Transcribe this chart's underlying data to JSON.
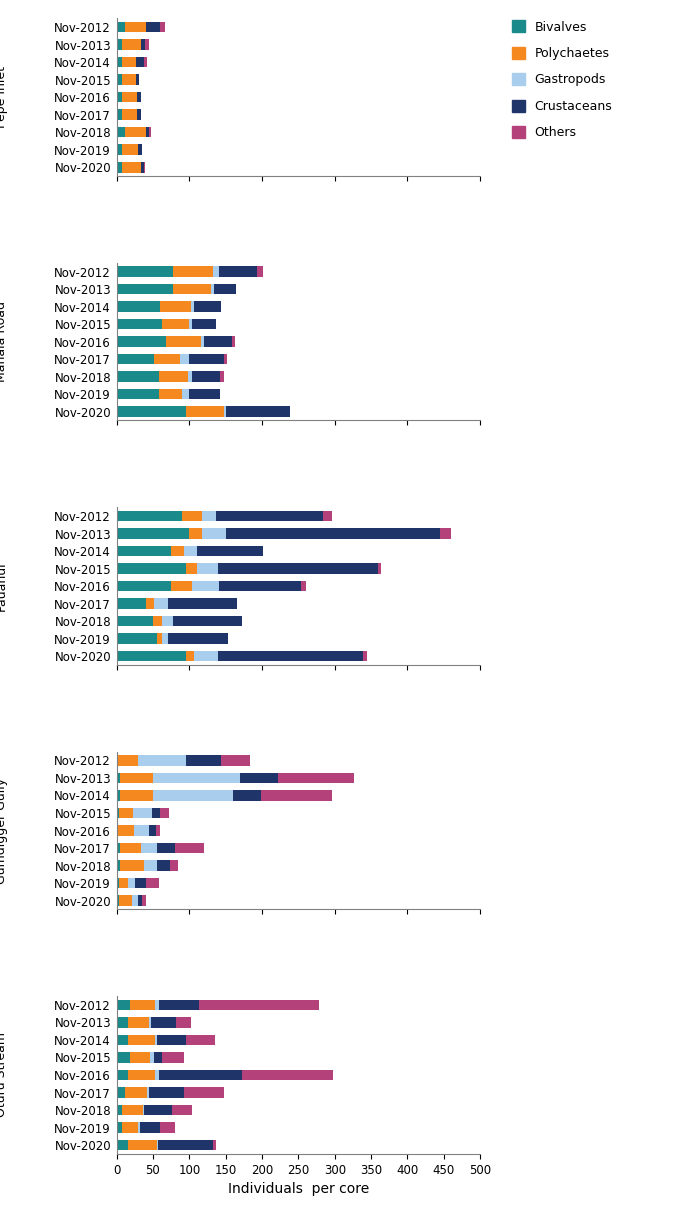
{
  "colors": {
    "Bivalves": "#1a8a8a",
    "Polychaetes": "#F5891F",
    "Gastropods": "#A8CDED",
    "Crustaceans": "#1F3468",
    "Others": "#B5417A"
  },
  "categories": [
    "Bivalves",
    "Polychaetes",
    "Gastropods",
    "Crustaceans",
    "Others"
  ],
  "sections": [
    {
      "label": "Pepe Inlet",
      "years": [
        "Nov-2012",
        "Nov-2013",
        "Nov-2014",
        "Nov-2015",
        "Nov-2016",
        "Nov-2017",
        "Nov-2018",
        "Nov-2019",
        "Nov-2020"
      ],
      "data": {
        "Bivalves": [
          12,
          8,
          8,
          8,
          8,
          8,
          12,
          8,
          8
        ],
        "Polychaetes": [
          28,
          25,
          18,
          18,
          20,
          20,
          28,
          22,
          25
        ],
        "Gastropods": [
          1,
          1,
          1,
          0,
          0,
          0,
          0,
          0,
          0
        ],
        "Crustaceans": [
          18,
          5,
          10,
          5,
          5,
          5,
          5,
          5,
          4
        ],
        "Others": [
          8,
          5,
          5,
          0,
          0,
          0,
          2,
          0,
          2
        ]
      }
    },
    {
      "label": "Manaia Road",
      "years": [
        "Nov-2012",
        "Nov-2013",
        "Nov-2014",
        "Nov-2015",
        "Nov-2016",
        "Nov-2017",
        "Nov-2018",
        "Nov-2019",
        "Nov-2020"
      ],
      "data": {
        "Bivalves": [
          78,
          78,
          60,
          62,
          68,
          52,
          58,
          58,
          95
        ],
        "Polychaetes": [
          55,
          52,
          42,
          38,
          48,
          35,
          40,
          32,
          52
        ],
        "Gastropods": [
          8,
          4,
          4,
          4,
          4,
          12,
          6,
          10,
          4
        ],
        "Crustaceans": [
          52,
          30,
          38,
          32,
          38,
          48,
          38,
          42,
          88
        ],
        "Others": [
          8,
          0,
          0,
          0,
          5,
          5,
          5,
          0,
          0
        ]
      }
    },
    {
      "label": "Pauanui",
      "years": [
        "Nov-2012",
        "Nov-2013",
        "Nov-2014",
        "Nov-2015",
        "Nov-2016",
        "Nov-2017",
        "Nov-2018",
        "Nov-2019",
        "Nov-2020"
      ],
      "data": {
        "Bivalves": [
          90,
          100,
          75,
          95,
          75,
          40,
          50,
          55,
          95
        ],
        "Polychaetes": [
          28,
          18,
          18,
          16,
          28,
          12,
          12,
          8,
          12
        ],
        "Gastropods": [
          18,
          32,
          18,
          28,
          38,
          18,
          15,
          8,
          32
        ],
        "Crustaceans": [
          148,
          295,
          90,
          220,
          112,
          95,
          95,
          82,
          200
        ],
        "Others": [
          12,
          15,
          0,
          5,
          8,
          0,
          0,
          0,
          5
        ]
      }
    },
    {
      "label": "Gumdigger Gully",
      "years": [
        "Nov-2012",
        "Nov-2013",
        "Nov-2014",
        "Nov-2015",
        "Nov-2016",
        "Nov-2017",
        "Nov-2018",
        "Nov-2019",
        "Nov-2020"
      ],
      "data": {
        "Bivalves": [
          2,
          5,
          5,
          3,
          2,
          5,
          5,
          3,
          3
        ],
        "Polychaetes": [
          28,
          45,
          45,
          20,
          22,
          28,
          32,
          12,
          18
        ],
        "Gastropods": [
          65,
          120,
          110,
          25,
          20,
          22,
          18,
          10,
          8
        ],
        "Crustaceans": [
          48,
          52,
          38,
          12,
          10,
          25,
          18,
          15,
          6
        ],
        "Others": [
          40,
          105,
          98,
          12,
          5,
          40,
          12,
          18,
          5
        ]
      }
    },
    {
      "label": "Oturu Stream",
      "years": [
        "Nov-2012",
        "Nov-2013",
        "Nov-2014",
        "Nov-2015",
        "Nov-2016",
        "Nov-2017",
        "Nov-2018",
        "Nov-2019",
        "Nov-2020"
      ],
      "data": {
        "Bivalves": [
          18,
          15,
          15,
          18,
          15,
          12,
          8,
          8,
          15
        ],
        "Polychaetes": [
          35,
          30,
          38,
          28,
          38,
          30,
          28,
          22,
          40
        ],
        "Gastropods": [
          5,
          2,
          2,
          5,
          5,
          2,
          2,
          2,
          2
        ],
        "Crustaceans": [
          55,
          35,
          40,
          12,
          115,
          48,
          38,
          28,
          75
        ],
        "Others": [
          165,
          20,
          40,
          30,
          125,
          55,
          28,
          20,
          5
        ]
      }
    }
  ],
  "xlim": [
    0,
    500
  ],
  "xticks": [
    0,
    50,
    100,
    150,
    200,
    250,
    300,
    350,
    400,
    450,
    500
  ],
  "xlabel": "Individuals  per core",
  "bar_height": 0.6,
  "figsize": [
    6.86,
    12.21
  ],
  "dpi": 100,
  "background": "#ffffff"
}
